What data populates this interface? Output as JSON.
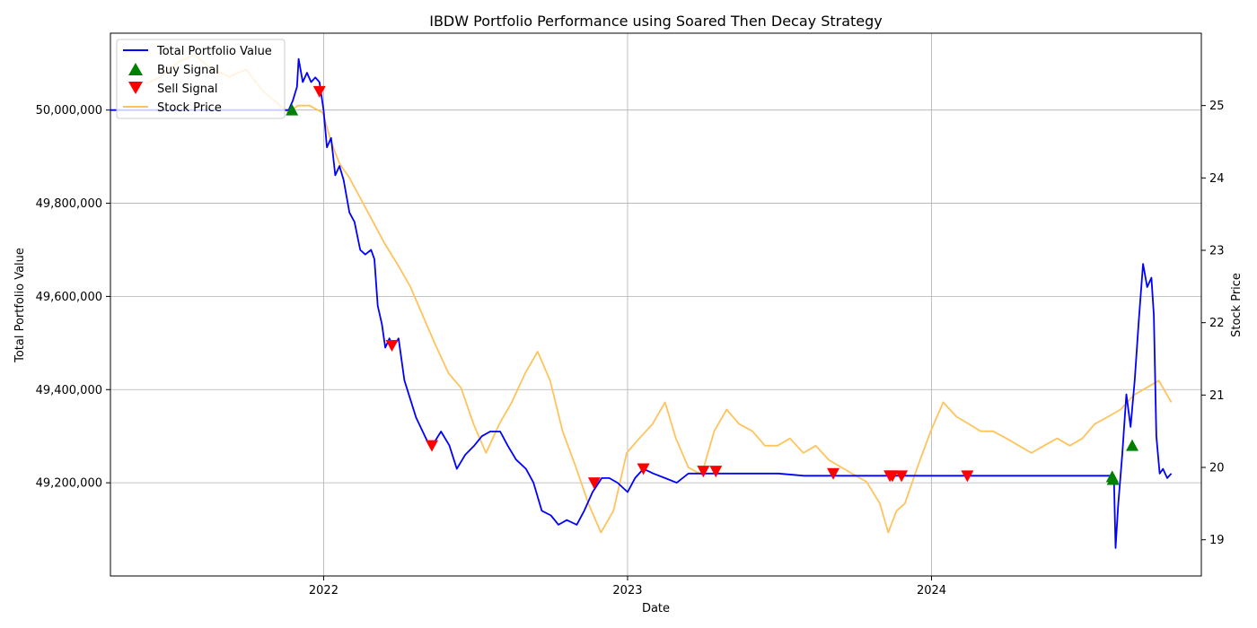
{
  "chart_data": {
    "type": "line",
    "title": "IBDW Portfolio Performance using Soared Then Decay Strategy",
    "xlabel": "Date",
    "ylabel": "Total Portfolio Value",
    "ylabel_right": "Stock Price",
    "xlim": [
      "2021-04-20",
      "2024-11-20"
    ],
    "ylim": [
      49000000,
      50165000
    ],
    "ylim_right": [
      18.5,
      26.0
    ],
    "x_ticks": [
      "2022-01-01",
      "2023-01-01",
      "2024-01-01"
    ],
    "x_tick_labels": [
      "2022",
      "2023",
      "2024"
    ],
    "y_ticks": [
      49200000,
      49400000,
      49600000,
      49800000,
      50000000
    ],
    "y_tick_labels": [
      "49,200,000",
      "49,400,000",
      "49,600,000",
      "49,800,000",
      "50,000,000"
    ],
    "y_ticks_right": [
      19,
      20,
      21,
      22,
      23,
      24,
      25
    ],
    "y_tick_labels_right": [
      "19",
      "20",
      "21",
      "22",
      "23",
      "24",
      "25"
    ],
    "grid": true,
    "legend_placement": "top-left",
    "colors": {
      "portfolio": "#0000ff",
      "stock": "#ffc35c",
      "buy": "#008000",
      "sell": "#ff0000"
    },
    "legend": [
      {
        "label": "Total Portfolio Value",
        "kind": "line",
        "color": "#0000ff"
      },
      {
        "label": "Buy Signal",
        "kind": "triangle-up",
        "color": "#008000"
      },
      {
        "label": "Sell Signal",
        "kind": "triangle-down",
        "color": "#ff0000"
      },
      {
        "label": "Stock Price",
        "kind": "line",
        "color": "#ffc35c"
      }
    ],
    "series": [
      {
        "name": "Total Portfolio Value",
        "axis": "left",
        "x": [
          "2021-04-20",
          "2021-06-01",
          "2021-08-01",
          "2021-10-01",
          "2021-11-20",
          "2021-11-25",
          "2021-11-30",
          "2021-12-02",
          "2021-12-07",
          "2021-12-12",
          "2021-12-17",
          "2021-12-22",
          "2021-12-27",
          "2022-01-01",
          "2022-01-05",
          "2022-01-10",
          "2022-01-15",
          "2022-01-20",
          "2022-01-25",
          "2022-02-01",
          "2022-02-07",
          "2022-02-14",
          "2022-02-20",
          "2022-02-27",
          "2022-03-03",
          "2022-03-07",
          "2022-03-12",
          "2022-03-16",
          "2022-03-21",
          "2022-03-25",
          "2022-04-01",
          "2022-04-08",
          "2022-04-15",
          "2022-04-22",
          "2022-04-30",
          "2022-05-08",
          "2022-05-15",
          "2022-05-22",
          "2022-06-01",
          "2022-06-10",
          "2022-06-20",
          "2022-07-01",
          "2022-07-10",
          "2022-07-20",
          "2022-08-01",
          "2022-08-10",
          "2022-08-20",
          "2022-09-01",
          "2022-09-10",
          "2022-09-20",
          "2022-10-01",
          "2022-10-10",
          "2022-10-20",
          "2022-11-01",
          "2022-11-10",
          "2022-11-20",
          "2022-12-01",
          "2022-12-10",
          "2022-12-20",
          "2023-01-01",
          "2023-01-10",
          "2023-01-20",
          "2023-02-01",
          "2023-02-15",
          "2023-03-01",
          "2023-03-15",
          "2023-04-01",
          "2023-04-15",
          "2023-05-01",
          "2023-06-01",
          "2023-07-01",
          "2023-08-01",
          "2023-09-01",
          "2023-10-01",
          "2023-11-01",
          "2023-12-01",
          "2024-01-01",
          "2024-03-01",
          "2024-05-01",
          "2024-07-01",
          "2024-08-01",
          "2024-08-07",
          "2024-08-09",
          "2024-08-12",
          "2024-08-17",
          "2024-08-22",
          "2024-08-27",
          "2024-09-01",
          "2024-09-06",
          "2024-09-11",
          "2024-09-16",
          "2024-09-21",
          "2024-09-24",
          "2024-09-27",
          "2024-10-01",
          "2024-10-05",
          "2024-10-10",
          "2024-10-15"
        ],
        "values": [
          50000000,
          50000000,
          50000000,
          50000000,
          50000000,
          50020000,
          50050000,
          50110000,
          50060000,
          50080000,
          50060000,
          50070000,
          50060000,
          50000000,
          49920000,
          49940000,
          49860000,
          49880000,
          49850000,
          49780000,
          49760000,
          49700000,
          49690000,
          49700000,
          49680000,
          49580000,
          49540000,
          49490000,
          49510000,
          49490000,
          49510000,
          49420000,
          49380000,
          49340000,
          49310000,
          49280000,
          49290000,
          49310000,
          49280000,
          49230000,
          49260000,
          49280000,
          49300000,
          49310000,
          49310000,
          49280000,
          49250000,
          49230000,
          49200000,
          49140000,
          49130000,
          49110000,
          49120000,
          49110000,
          49140000,
          49180000,
          49210000,
          49210000,
          49200000,
          49180000,
          49210000,
          49230000,
          49220000,
          49210000,
          49200000,
          49220000,
          49220000,
          49220000,
          49220000,
          49220000,
          49220000,
          49215000,
          49215000,
          49215000,
          49215000,
          49215000,
          49215000,
          49215000,
          49215000,
          49215000,
          49215000,
          49215000,
          49060000,
          49150000,
          49260000,
          49390000,
          49320000,
          49420000,
          49550000,
          49670000,
          49620000,
          49640000,
          49560000,
          49300000,
          49220000,
          49230000,
          49210000,
          49220000
        ]
      },
      {
        "name": "Stock Price",
        "axis": "right",
        "x": [
          "2021-06-01",
          "2021-06-20",
          "2021-07-10",
          "2021-07-30",
          "2021-08-20",
          "2021-09-10",
          "2021-09-30",
          "2021-10-20",
          "2021-11-10",
          "2021-11-20",
          "2021-12-01",
          "2021-12-15",
          "2021-12-31",
          "2022-01-10",
          "2022-01-20",
          "2022-02-01",
          "2022-02-15",
          "2022-03-01",
          "2022-03-15",
          "2022-03-31",
          "2022-04-15",
          "2022-04-30",
          "2022-05-15",
          "2022-05-31",
          "2022-06-15",
          "2022-06-30",
          "2022-07-15",
          "2022-07-31",
          "2022-08-15",
          "2022-08-31",
          "2022-09-15",
          "2022-09-30",
          "2022-10-15",
          "2022-10-31",
          "2022-11-15",
          "2022-11-30",
          "2022-12-15",
          "2022-12-31",
          "2023-01-15",
          "2023-01-31",
          "2023-02-15",
          "2023-02-28",
          "2023-03-15",
          "2023-03-31",
          "2023-04-15",
          "2023-04-30",
          "2023-05-15",
          "2023-05-31",
          "2023-06-15",
          "2023-06-30",
          "2023-07-15",
          "2023-07-31",
          "2023-08-15",
          "2023-08-31",
          "2023-09-15",
          "2023-09-30",
          "2023-10-15",
          "2023-10-31",
          "2023-11-10",
          "2023-11-20",
          "2023-11-30",
          "2023-12-15",
          "2023-12-31",
          "2024-01-15",
          "2024-01-31",
          "2024-02-15",
          "2024-02-29",
          "2024-03-15",
          "2024-03-31",
          "2024-04-15",
          "2024-04-30",
          "2024-05-15",
          "2024-05-31",
          "2024-06-15",
          "2024-06-30",
          "2024-07-15",
          "2024-07-31",
          "2024-08-15",
          "2024-08-31",
          "2024-09-15",
          "2024-09-30",
          "2024-10-15"
        ],
        "values": [
          25.3,
          25.4,
          25.6,
          25.7,
          25.5,
          25.4,
          25.5,
          25.2,
          25.0,
          24.9,
          25.0,
          25.0,
          24.9,
          24.5,
          24.2,
          24.0,
          23.7,
          23.4,
          23.1,
          22.8,
          22.5,
          22.1,
          21.7,
          21.3,
          21.1,
          20.6,
          20.2,
          20.6,
          20.9,
          21.3,
          21.6,
          21.2,
          20.5,
          20.0,
          19.5,
          19.1,
          19.4,
          20.2,
          20.4,
          20.6,
          20.9,
          20.4,
          20.0,
          19.9,
          20.5,
          20.8,
          20.6,
          20.5,
          20.3,
          20.3,
          20.4,
          20.2,
          20.3,
          20.1,
          20.0,
          19.9,
          19.8,
          19.5,
          19.1,
          19.4,
          19.5,
          20.0,
          20.5,
          20.9,
          20.7,
          20.6,
          20.5,
          20.5,
          20.4,
          20.3,
          20.2,
          20.3,
          20.4,
          20.3,
          20.4,
          20.6,
          20.7,
          20.8,
          21.0,
          21.1,
          21.2,
          20.9
        ]
      }
    ],
    "buy_signals": {
      "name": "Buy Signal",
      "x": [
        "2021-11-24",
        "2024-08-05",
        "2024-08-06",
        "2024-08-29"
      ],
      "values": [
        50000000,
        49213000,
        49207000,
        49280000
      ]
    },
    "sell_signals": {
      "name": "Sell Signal",
      "x": [
        "2021-12-27",
        "2022-03-24",
        "2022-05-11",
        "2022-11-22",
        "2023-01-20",
        "2023-04-02",
        "2023-04-17",
        "2023-09-05",
        "2023-11-12",
        "2023-11-15",
        "2023-11-26",
        "2024-02-13"
      ],
      "values": [
        50040000,
        49495000,
        49280000,
        49200000,
        49230000,
        49225000,
        49225000,
        49220000,
        49215000,
        49215000,
        49215000,
        49215000
      ]
    }
  }
}
